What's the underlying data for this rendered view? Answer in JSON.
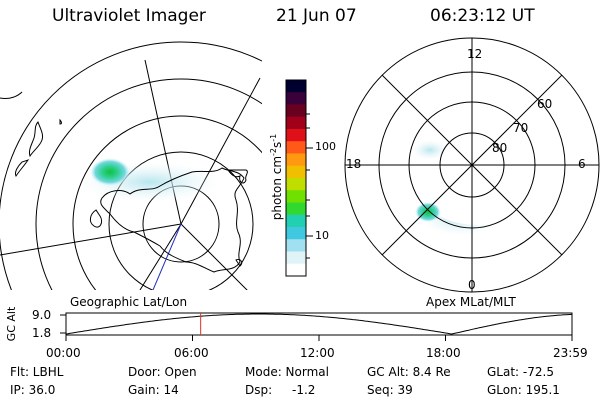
{
  "header": {
    "instrument": "Ultraviolet Imager",
    "date": "21 Jun 07",
    "time": "06:23:12 UT"
  },
  "maps": {
    "left_label": "Geographic Lat/Lon",
    "right_label": "Apex MLat/MLT"
  },
  "right_map": {
    "mlt_labels": {
      "top": "12",
      "left": "18",
      "right": "6",
      "bottom": "0"
    },
    "lat_labels": [
      "60",
      "70",
      "80"
    ]
  },
  "colorbar": {
    "unit_label": "photon cm-2s-1",
    "unit_main": "photon cm",
    "unit_sup1": "-2",
    "unit_s": "s",
    "unit_sup2": "-1",
    "ticks": [
      "100",
      "10"
    ],
    "colors": [
      "#000030",
      "#3a003a",
      "#6a0020",
      "#a0001a",
      "#e0101a",
      "#ff5a18",
      "#ff9a10",
      "#f0c000",
      "#c0dd00",
      "#70e000",
      "#30d830",
      "#20d0b0",
      "#40c8e0",
      "#a0e0f0",
      "#e0f4f8",
      "#ffffff"
    ]
  },
  "orbit_plot": {
    "ylabel": "GC Alt",
    "yticks": [
      "9.0",
      "1.8"
    ],
    "xticks": [
      "00:00",
      "06:00",
      "12:00",
      "18:00",
      "23:59"
    ],
    "ylim": [
      1.8,
      9.0
    ],
    "marker_time_hours": 6.387
  },
  "info": {
    "filter": "Flt: LBHL",
    "ip": "IP: 36.0",
    "door": "Door: Open",
    "gain": "Gain: 14",
    "mode": "Mode: Normal",
    "dsp_label": "Dsp:",
    "dsp_value": "-1.2",
    "gc_alt": "GC Alt: 8.4 Re",
    "seq": "Seq: 39",
    "glat": "GLat: -72.5",
    "glon": "GLon: 195.1"
  },
  "colors": {
    "marker": "#e03020",
    "track": "#2030c0",
    "foreground": "#000000"
  }
}
